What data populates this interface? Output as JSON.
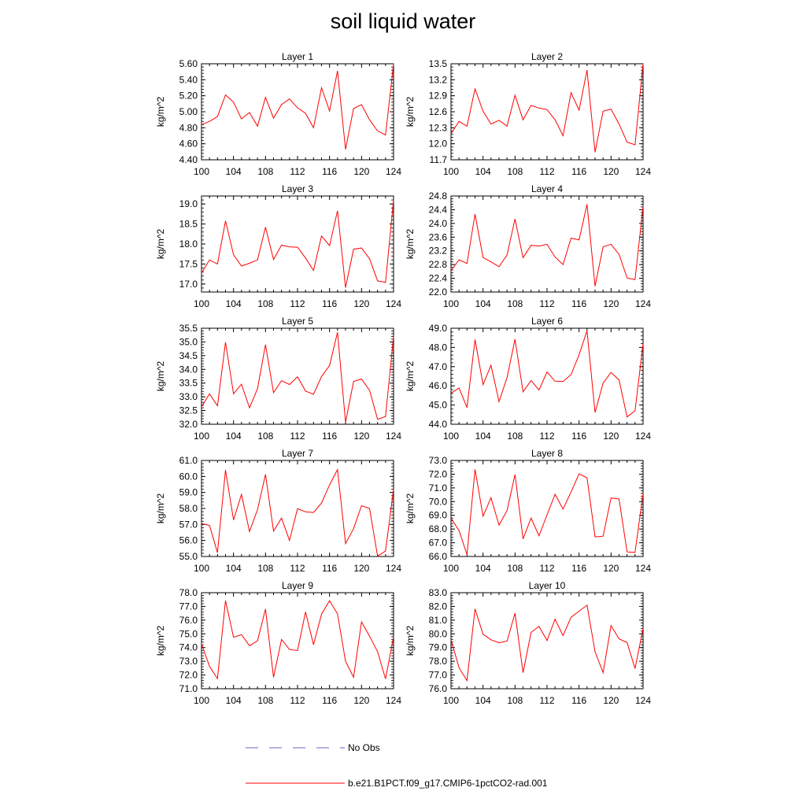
{
  "title": "soil liquid water",
  "legend": {
    "items": [
      {
        "label": "No Obs",
        "color": "#6666cc",
        "dash": true
      },
      {
        "label": "b.e21.B1PCT.f09_g17.CMIP6-1pctCO2-rad.001",
        "color": "#ff0000",
        "dash": false
      }
    ]
  },
  "colors": {
    "series": "#ff0000",
    "frame": "#000000"
  },
  "chart_data": [
    {
      "type": "line",
      "title": "Layer 1",
      "xlabel": "",
      "ylabel": "kg/m^2",
      "xlim": [
        100,
        124
      ],
      "ylim": [
        4.4,
        5.6
      ],
      "xticks": [
        "100",
        "104",
        "108",
        "112",
        "116",
        "120",
        "124"
      ],
      "yticks": [
        "4.40",
        "4.60",
        "4.80",
        "5.00",
        "5.20",
        "5.40",
        "5.60"
      ],
      "series": [
        {
          "x": [
            100,
            101,
            102,
            103,
            104,
            105,
            106,
            107,
            108,
            109,
            110,
            111,
            112,
            113,
            114,
            115,
            116,
            117,
            118,
            119,
            120,
            121,
            122,
            123,
            124
          ],
          "values": [
            4.84,
            4.88,
            4.94,
            5.21,
            5.12,
            4.91,
            4.99,
            4.82,
            5.18,
            4.92,
            5.09,
            5.16,
            5.05,
            4.98,
            4.8,
            5.3,
            5.01,
            5.51,
            4.53,
            5.04,
            5.09,
            4.9,
            4.76,
            4.71,
            5.6
          ]
        }
      ]
    },
    {
      "type": "line",
      "title": "Layer 2",
      "xlabel": "",
      "ylabel": "kg/m^2",
      "xlim": [
        100,
        124
      ],
      "ylim": [
        11.7,
        13.5
      ],
      "xticks": [
        "100",
        "104",
        "108",
        "112",
        "116",
        "120",
        "124"
      ],
      "yticks": [
        "11.7",
        "12.0",
        "12.3",
        "12.6",
        "12.9",
        "13.2",
        "13.5"
      ],
      "series": [
        {
          "x": [
            100,
            101,
            102,
            103,
            104,
            105,
            106,
            107,
            108,
            109,
            110,
            111,
            112,
            113,
            114,
            115,
            116,
            117,
            118,
            119,
            120,
            121,
            122,
            123,
            124
          ],
          "values": [
            12.19,
            12.42,
            12.33,
            13.03,
            12.61,
            12.37,
            12.44,
            12.33,
            12.91,
            12.45,
            12.72,
            12.67,
            12.64,
            12.45,
            12.15,
            12.96,
            12.63,
            13.38,
            11.84,
            12.61,
            12.65,
            12.37,
            12.03,
            11.98,
            13.5
          ]
        }
      ]
    },
    {
      "type": "line",
      "title": "Layer 3",
      "xlabel": "",
      "ylabel": "kg/m^2",
      "xlim": [
        100,
        124
      ],
      "ylim": [
        16.8,
        19.2
      ],
      "xticks": [
        "100",
        "104",
        "108",
        "112",
        "116",
        "120",
        "124"
      ],
      "yticks": [
        "17.0",
        "17.5",
        "18.0",
        "18.5",
        "19.0"
      ],
      "series": [
        {
          "x": [
            100,
            101,
            102,
            103,
            104,
            105,
            106,
            107,
            108,
            109,
            110,
            111,
            112,
            113,
            114,
            115,
            116,
            117,
            118,
            119,
            120,
            121,
            122,
            123,
            124
          ],
          "values": [
            17.27,
            17.6,
            17.5,
            18.58,
            17.73,
            17.45,
            17.52,
            17.6,
            18.42,
            17.61,
            17.97,
            17.93,
            17.92,
            17.65,
            17.34,
            18.2,
            17.96,
            18.83,
            16.91,
            17.87,
            17.9,
            17.63,
            17.08,
            17.04,
            19.1
          ]
        }
      ]
    },
    {
      "type": "line",
      "title": "Layer 4",
      "xlabel": "",
      "ylabel": "kg/m^2",
      "xlim": [
        100,
        124
      ],
      "ylim": [
        22.0,
        24.8
      ],
      "xticks": [
        "100",
        "104",
        "108",
        "112",
        "116",
        "120",
        "124"
      ],
      "yticks": [
        "22.0",
        "22.4",
        "22.8",
        "23.2",
        "23.6",
        "24.0",
        "24.4",
        "24.8"
      ],
      "series": [
        {
          "x": [
            100,
            101,
            102,
            103,
            104,
            105,
            106,
            107,
            108,
            109,
            110,
            111,
            112,
            113,
            114,
            115,
            116,
            117,
            118,
            119,
            120,
            121,
            122,
            123,
            124
          ],
          "values": [
            22.62,
            22.94,
            22.83,
            24.27,
            23.01,
            22.88,
            22.74,
            23.08,
            24.13,
            23.0,
            23.36,
            23.34,
            23.39,
            23.02,
            22.8,
            23.57,
            23.52,
            24.56,
            22.17,
            23.32,
            23.39,
            23.1,
            22.41,
            22.36,
            24.5
          ]
        }
      ]
    },
    {
      "type": "line",
      "title": "Layer 5",
      "xlabel": "",
      "ylabel": "kg/m^2",
      "xlim": [
        100,
        124
      ],
      "ylim": [
        32.0,
        35.5
      ],
      "xticks": [
        "100",
        "104",
        "108",
        "112",
        "116",
        "120",
        "124"
      ],
      "yticks": [
        "32.0",
        "32.5",
        "33.0",
        "33.5",
        "34.0",
        "34.5",
        "35.0",
        "35.5"
      ],
      "series": [
        {
          "x": [
            100,
            101,
            102,
            103,
            104,
            105,
            106,
            107,
            108,
            109,
            110,
            111,
            112,
            113,
            114,
            115,
            116,
            117,
            118,
            119,
            120,
            121,
            122,
            123,
            124
          ],
          "values": [
            32.63,
            33.11,
            32.67,
            34.99,
            33.11,
            33.46,
            32.6,
            33.3,
            34.9,
            33.15,
            33.59,
            33.45,
            33.73,
            33.21,
            33.09,
            33.74,
            34.14,
            35.35,
            32.07,
            33.56,
            33.65,
            33.24,
            32.18,
            32.28,
            35.2
          ]
        }
      ]
    },
    {
      "type": "line",
      "title": "Layer 6",
      "xlabel": "",
      "ylabel": "kg/m^2",
      "xlim": [
        100,
        124
      ],
      "ylim": [
        44.0,
        49.0
      ],
      "xticks": [
        "100",
        "104",
        "108",
        "112",
        "116",
        "120",
        "124"
      ],
      "yticks": [
        "44.0",
        "45.0",
        "46.0",
        "47.0",
        "48.0",
        "49.0"
      ],
      "series": [
        {
          "x": [
            100,
            101,
            102,
            103,
            104,
            105,
            106,
            107,
            108,
            109,
            110,
            111,
            112,
            113,
            114,
            115,
            116,
            117,
            118,
            119,
            120,
            121,
            122,
            123,
            124
          ],
          "values": [
            45.62,
            45.89,
            44.87,
            48.41,
            46.06,
            47.07,
            45.18,
            46.43,
            48.43,
            45.69,
            46.28,
            45.78,
            46.72,
            46.24,
            46.23,
            46.58,
            47.62,
            48.87,
            44.61,
            46.14,
            46.7,
            46.3,
            44.38,
            44.7,
            48.2
          ]
        }
      ]
    },
    {
      "type": "line",
      "title": "Layer 7",
      "xlabel": "",
      "ylabel": "kg/m^2",
      "xlim": [
        100,
        124
      ],
      "ylim": [
        55.0,
        61.0
      ],
      "xticks": [
        "100",
        "104",
        "108",
        "112",
        "116",
        "120",
        "124"
      ],
      "yticks": [
        "55.0",
        "56.0",
        "57.0",
        "58.0",
        "59.0",
        "60.0",
        "61.0"
      ],
      "series": [
        {
          "x": [
            100,
            101,
            102,
            103,
            104,
            105,
            106,
            107,
            108,
            109,
            110,
            111,
            112,
            113,
            114,
            115,
            116,
            117,
            118,
            119,
            120,
            121,
            122,
            123,
            124
          ],
          "values": [
            57.05,
            56.94,
            55.24,
            60.4,
            57.28,
            58.88,
            56.56,
            57.93,
            60.13,
            56.59,
            57.4,
            56.0,
            57.99,
            57.79,
            57.75,
            58.34,
            59.47,
            60.43,
            55.8,
            56.74,
            58.17,
            58.0,
            55.02,
            55.34,
            59.2
          ]
        }
      ]
    },
    {
      "type": "line",
      "title": "Layer 8",
      "xlabel": "",
      "ylabel": "kg/m^2",
      "xlim": [
        100,
        124
      ],
      "ylim": [
        66.0,
        73.0
      ],
      "xticks": [
        "100",
        "104",
        "108",
        "112",
        "116",
        "120",
        "124"
      ],
      "yticks": [
        "66.0",
        "67.0",
        "68.0",
        "69.0",
        "70.0",
        "71.0",
        "72.0",
        "73.0"
      ],
      "series": [
        {
          "x": [
            100,
            101,
            102,
            103,
            104,
            105,
            106,
            107,
            108,
            109,
            110,
            111,
            112,
            113,
            114,
            115,
            116,
            117,
            118,
            119,
            120,
            121,
            122,
            123,
            124
          ],
          "values": [
            68.8,
            67.89,
            66.14,
            72.35,
            68.94,
            70.28,
            68.29,
            69.35,
            71.98,
            67.28,
            68.8,
            67.51,
            69.04,
            70.53,
            69.45,
            70.7,
            72.02,
            71.74,
            67.43,
            67.48,
            70.27,
            70.19,
            66.33,
            66.3,
            70.6
          ]
        }
      ]
    },
    {
      "type": "line",
      "title": "Layer 9",
      "xlabel": "",
      "ylabel": "kg/m^2",
      "xlim": [
        100,
        124
      ],
      "ylim": [
        71.0,
        78.0
      ],
      "xticks": [
        "100",
        "104",
        "108",
        "112",
        "116",
        "120",
        "124"
      ],
      "yticks": [
        "71.0",
        "72.0",
        "73.0",
        "74.0",
        "75.0",
        "76.0",
        "77.0",
        "78.0"
      ],
      "series": [
        {
          "x": [
            100,
            101,
            102,
            103,
            104,
            105,
            106,
            107,
            108,
            109,
            110,
            111,
            112,
            113,
            114,
            115,
            116,
            117,
            118,
            119,
            120,
            121,
            122,
            123,
            124
          ],
          "values": [
            74.27,
            72.63,
            71.74,
            77.42,
            74.75,
            74.94,
            74.13,
            74.5,
            76.81,
            71.84,
            74.59,
            73.86,
            73.78,
            76.6,
            74.21,
            76.44,
            77.42,
            76.45,
            73.0,
            71.83,
            75.87,
            74.83,
            73.7,
            71.72,
            74.8
          ]
        }
      ]
    },
    {
      "type": "line",
      "title": "Layer 10",
      "xlabel": "",
      "ylabel": "kg/m^2",
      "xlim": [
        100,
        124
      ],
      "ylim": [
        76.0,
        83.0
      ],
      "xticks": [
        "100",
        "104",
        "108",
        "112",
        "116",
        "120",
        "124"
      ],
      "yticks": [
        "76.0",
        "77.0",
        "78.0",
        "79.0",
        "80.0",
        "81.0",
        "82.0",
        "83.0"
      ],
      "series": [
        {
          "x": [
            100,
            101,
            102,
            103,
            104,
            105,
            106,
            107,
            108,
            109,
            110,
            111,
            112,
            113,
            114,
            115,
            116,
            117,
            118,
            119,
            120,
            121,
            122,
            123,
            124
          ],
          "values": [
            79.57,
            77.54,
            76.59,
            81.82,
            79.97,
            79.57,
            79.35,
            79.47,
            81.51,
            77.17,
            80.1,
            80.55,
            79.51,
            81.07,
            79.87,
            81.21,
            81.65,
            82.09,
            78.7,
            77.17,
            80.6,
            79.63,
            79.37,
            77.47,
            80.4
          ]
        }
      ]
    }
  ]
}
